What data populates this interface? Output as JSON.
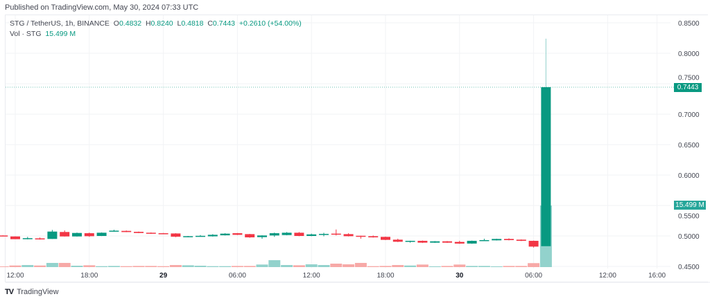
{
  "header": {
    "published": "Published on TradingView.com, May 30, 2024 07:33 UTC"
  },
  "legend": {
    "symbol": "STG / TetherUS, 1h, BINANCE",
    "o_label": "O",
    "o": "0.4832",
    "h_label": "H",
    "h": "0.8240",
    "l_label": "L",
    "l": "0.4818",
    "c_label": "C",
    "c": "0.7443",
    "change": "+0.2610 (+54.00%)",
    "vol_label": "Vol · STG",
    "vol": "15.499 M"
  },
  "price_tag": "0.7443",
  "volume_tag": "15.499 M",
  "brand": {
    "name": "TradingView"
  },
  "colors": {
    "up": "#089981",
    "down": "#f23645",
    "up_vol": "#92d2cc",
    "down_vol": "#f7a9a7",
    "grid": "#f2f3f5"
  },
  "chart_data": {
    "type": "candlestick",
    "title": "STG / TetherUS, 1h, BINANCE",
    "ylim": [
      0.45,
      0.85
    ],
    "y_ticks": [
      "0.8500",
      "0.8000",
      "0.7500",
      "0.7000",
      "0.6500",
      "0.6000",
      "0.5500",
      "0.5000",
      "0.4500"
    ],
    "x_ticks": [
      {
        "label": "12:00",
        "hour": 1,
        "bold": false
      },
      {
        "label": "18:00",
        "hour": 7,
        "bold": false
      },
      {
        "label": "29",
        "hour": 13,
        "bold": true
      },
      {
        "label": "06:00",
        "hour": 19,
        "bold": false
      },
      {
        "label": "12:00",
        "hour": 25,
        "bold": false
      },
      {
        "label": "18:00",
        "hour": 31,
        "bold": false
      },
      {
        "label": "30",
        "hour": 37,
        "bold": true
      },
      {
        "label": "06:00",
        "hour": 43,
        "bold": false
      },
      {
        "label": "12:00",
        "hour": 49,
        "bold": false
      },
      {
        "label": "16:00",
        "hour": 53,
        "bold": false
      }
    ],
    "candles_note": "first candle = May 28 11:00, hourly",
    "candles": [
      [
        0.5008,
        0.501,
        0.4996,
        0.4998,
        0.17
      ],
      [
        0.4992,
        0.4995,
        0.4947,
        0.4947,
        0.4
      ],
      [
        0.4958,
        0.4985,
        0.4945,
        0.4964,
        0.52
      ],
      [
        0.496,
        0.4975,
        0.494,
        0.4955,
        0.4
      ],
      [
        0.4951,
        0.5099,
        0.4951,
        0.5072,
        1.05
      ],
      [
        0.5065,
        0.5091,
        0.499,
        0.4992,
        1.05
      ],
      [
        0.4992,
        0.5055,
        0.499,
        0.5049,
        0.35
      ],
      [
        0.5045,
        0.5055,
        0.4985,
        0.4996,
        0.46
      ],
      [
        0.5,
        0.5058,
        0.4998,
        0.5053,
        0.23
      ],
      [
        0.5072,
        0.5102,
        0.507,
        0.5087,
        0.29
      ],
      [
        0.5083,
        0.509,
        0.5062,
        0.5064,
        0.23
      ],
      [
        0.5068,
        0.5072,
        0.5047,
        0.5049,
        0.29
      ],
      [
        0.5053,
        0.5058,
        0.5036,
        0.5038,
        0.29
      ],
      [
        0.5045,
        0.5049,
        0.5032,
        0.5034,
        0.23
      ],
      [
        0.5041,
        0.5045,
        0.498,
        0.4988,
        0.52
      ],
      [
        0.4988,
        0.5,
        0.498,
        0.4996,
        0.46
      ],
      [
        0.4994,
        0.5015,
        0.499,
        0.5002,
        0.35
      ],
      [
        0.4994,
        0.503,
        0.499,
        0.5019,
        0.23
      ],
      [
        0.5011,
        0.5045,
        0.5008,
        0.5038,
        0.23
      ],
      [
        0.5045,
        0.5049,
        0.5015,
        0.5019,
        0.29
      ],
      [
        0.503,
        0.5034,
        0.497,
        0.4977,
        0.29
      ],
      [
        0.4981,
        0.5011,
        0.4953,
        0.5008,
        0.64
      ],
      [
        0.5008,
        0.5055,
        0.4985,
        0.5045,
        1.74
      ],
      [
        0.5015,
        0.5064,
        0.5011,
        0.5053,
        0.52
      ],
      [
        0.5053,
        0.5064,
        0.4996,
        0.5,
        0.46
      ],
      [
        0.5,
        0.5038,
        0.4996,
        0.5026,
        0.7
      ],
      [
        0.5019,
        0.5053,
        0.4995,
        0.5034,
        0.52
      ],
      [
        0.5038,
        0.5106,
        0.5008,
        0.5034,
        0.87
      ],
      [
        0.503,
        0.5045,
        0.4992,
        0.4996,
        0.7
      ],
      [
        0.5003,
        0.5005,
        0.4955,
        0.4996,
        1.05
      ],
      [
        0.4996,
        0.5008,
        0.4973,
        0.4977,
        0.23
      ],
      [
        0.4985,
        0.499,
        0.4932,
        0.4936,
        0.29
      ],
      [
        0.4939,
        0.4955,
        0.49,
        0.4905,
        0.52
      ],
      [
        0.4917,
        0.4922,
        0.489,
        0.492,
        0.4
      ],
      [
        0.492,
        0.4925,
        0.4885,
        0.489,
        0.64
      ],
      [
        0.489,
        0.4916,
        0.4886,
        0.4912,
        0.17
      ],
      [
        0.4912,
        0.4916,
        0.4886,
        0.489,
        0.29
      ],
      [
        0.4902,
        0.492,
        0.487,
        0.4875,
        0.64
      ],
      [
        0.4875,
        0.4924,
        0.4871,
        0.492,
        0.29
      ],
      [
        0.4924,
        0.4955,
        0.492,
        0.4932,
        0.29
      ],
      [
        0.4928,
        0.4955,
        0.4925,
        0.4951,
        0.17
      ],
      [
        0.4951,
        0.4962,
        0.4928,
        0.4932,
        0.29
      ],
      [
        0.4939,
        0.4943,
        0.4916,
        0.492,
        0.29
      ],
      [
        0.492,
        0.4924,
        0.481,
        0.4825,
        1.0
      ],
      [
        0.4832,
        0.824,
        0.4818,
        0.7443,
        15.499
      ]
    ],
    "last_price": 0.7443
  }
}
